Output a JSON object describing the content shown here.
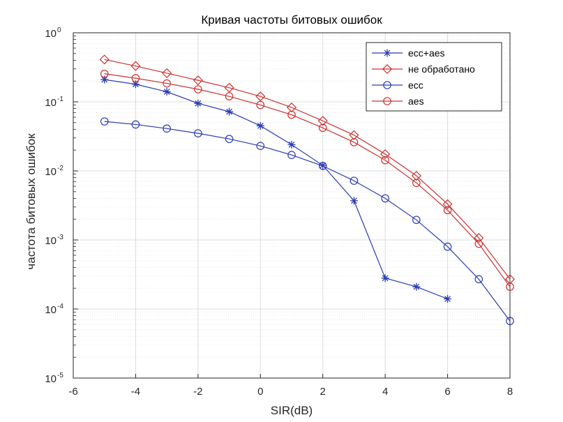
{
  "chart_data": {
    "type": "line",
    "title": "Кривая частоты битовых ошибок",
    "xlabel": "SIR(dB)",
    "ylabel": "частота битовых ошибок",
    "xlim": [
      -6,
      8
    ],
    "ylim": [
      1e-05,
      1
    ],
    "yscale": "log",
    "x_ticks": [
      -6,
      -4,
      -2,
      0,
      2,
      4,
      6,
      8
    ],
    "x_tick_labels": [
      "-6",
      "-4",
      "-2",
      "0",
      "2",
      "4",
      "6",
      "8"
    ],
    "y_ticks": [
      {
        "value": 1,
        "base": "10",
        "exp": "0"
      },
      {
        "value": 0.1,
        "base": "10",
        "exp": "-1"
      },
      {
        "value": 0.01,
        "base": "10",
        "exp": "-2"
      },
      {
        "value": 0.001,
        "base": "10",
        "exp": "-3"
      },
      {
        "value": 0.0001,
        "base": "10",
        "exp": "-4"
      },
      {
        "value": 1e-05,
        "base": "10",
        "exp": "-5"
      }
    ],
    "grid": true,
    "minor_grid": true,
    "legend_position": "top-right",
    "series": [
      {
        "name": "ecc+aes",
        "color": "#2b3bb5",
        "marker": "star",
        "x": [
          -5,
          -4,
          -3,
          -2,
          -1,
          0,
          1,
          2,
          3,
          4,
          5,
          6
        ],
        "y": [
          0.21,
          0.18,
          0.14,
          0.095,
          0.072,
          0.045,
          0.024,
          0.012,
          0.0037,
          0.00028,
          0.00021,
          0.00014
        ]
      },
      {
        "name": "не обработано",
        "color": "#cc3030",
        "marker": "diamond",
        "x": [
          -5,
          -4,
          -3,
          -2,
          -1,
          0,
          1,
          2,
          3,
          4,
          5,
          6,
          7,
          8
        ],
        "y": [
          0.41,
          0.33,
          0.26,
          0.205,
          0.16,
          0.12,
          0.083,
          0.053,
          0.033,
          0.0175,
          0.0085,
          0.0033,
          0.00107,
          0.00027
        ]
      },
      {
        "name": "ecc",
        "color": "#2b3bb5",
        "marker": "circle",
        "x": [
          -5,
          -4,
          -3,
          -2,
          -1,
          0,
          1,
          2,
          3,
          4,
          5,
          6,
          7,
          8
        ],
        "y": [
          0.052,
          0.047,
          0.041,
          0.035,
          0.029,
          0.023,
          0.017,
          0.0118,
          0.0072,
          0.004,
          0.00195,
          0.0008,
          0.00027,
          6.7e-05
        ]
      },
      {
        "name": "aes",
        "color": "#cc3030",
        "marker": "circle",
        "x": [
          -5,
          -4,
          -3,
          -2,
          -1,
          0,
          1,
          2,
          3,
          4,
          5,
          6,
          7,
          8
        ],
        "y": [
          0.255,
          0.22,
          0.185,
          0.152,
          0.12,
          0.09,
          0.065,
          0.042,
          0.026,
          0.0143,
          0.0067,
          0.0027,
          0.00088,
          0.00021
        ]
      }
    ]
  }
}
